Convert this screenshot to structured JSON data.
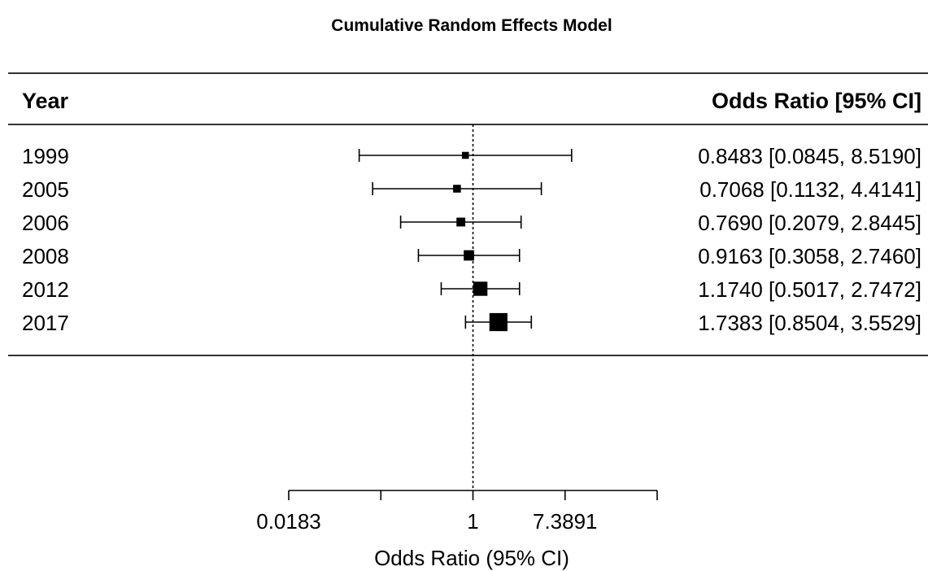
{
  "chart_data": {
    "type": "forest",
    "title": "Cumulative Random Effects Model",
    "header_left": "Year",
    "header_right": "Odds Ratio [95% CI]",
    "xlabel": "Odds Ratio (95% CI)",
    "x_scale": "log",
    "reference_line": 1,
    "axis_ticks": [
      0.0183,
      0.1353,
      1,
      7.3891,
      54.5982
    ],
    "axis_tick_labels": [
      "0.0183",
      "",
      "1",
      "7.3891",
      ""
    ],
    "rows": [
      {
        "label": "1999",
        "estimate": 0.8483,
        "ci_low": 0.0845,
        "ci_high": 8.519,
        "text": "0.8483 [0.0845, 8.5190]",
        "weight": 1
      },
      {
        "label": "2005",
        "estimate": 0.7068,
        "ci_low": 0.1132,
        "ci_high": 4.4141,
        "text": "0.7068 [0.1132, 4.4141]",
        "weight": 1.6
      },
      {
        "label": "2006",
        "estimate": 0.769,
        "ci_low": 0.2079,
        "ci_high": 2.8445,
        "text": "0.7690 [0.2079, 2.8445]",
        "weight": 2.4
      },
      {
        "label": "2008",
        "estimate": 0.9163,
        "ci_low": 0.3058,
        "ci_high": 2.746,
        "text": "0.9163 [0.3058, 2.7460]",
        "weight": 3.6
      },
      {
        "label": "2012",
        "estimate": 1.174,
        "ci_low": 0.5017,
        "ci_high": 2.7472,
        "text": "1.1740 [0.5017, 2.7472]",
        "weight": 6.5
      },
      {
        "label": "2017",
        "estimate": 1.7383,
        "ci_low": 0.8504,
        "ci_high": 3.5529,
        "text": "1.7383 [0.8504, 3.5529]",
        "weight": 9.5
      }
    ]
  }
}
